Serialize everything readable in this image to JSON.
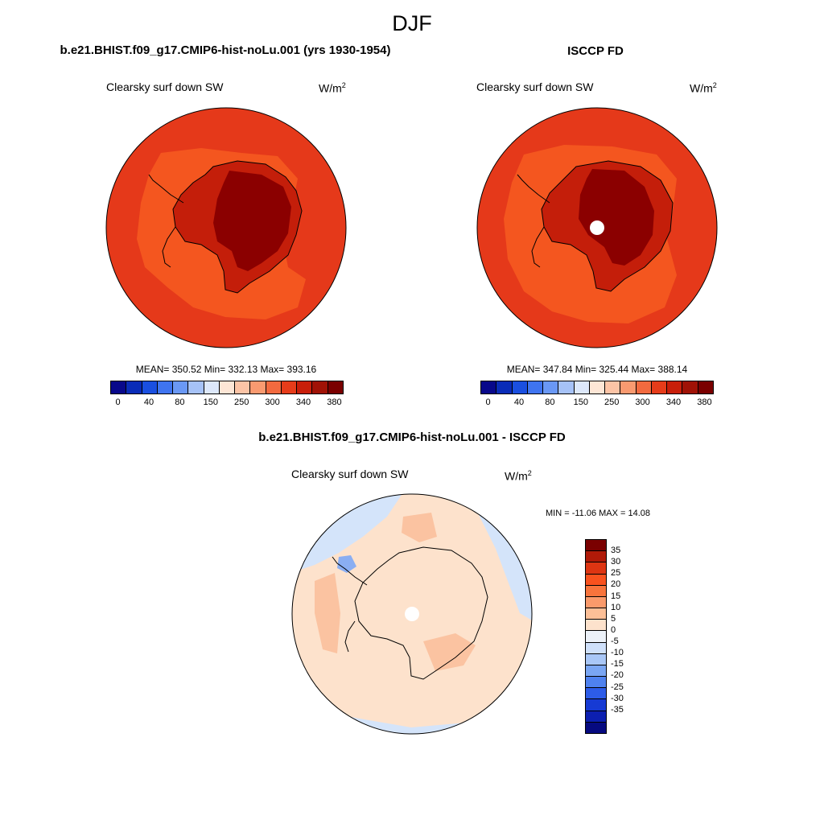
{
  "title": "DJF",
  "panels": [
    {
      "title": "b.e21.BHIST.f09_g17.CMIP6-hist-noLu.001 (yrs 1930-1954)",
      "variable": "Clearsky surf down SW",
      "units_base": "W/m",
      "units_exp": "2",
      "stats": "MEAN= 350.52  Min= 332.13  Max= 393.16"
    },
    {
      "title": "ISCCP FD",
      "variable": "Clearsky surf down SW",
      "units_base": "W/m",
      "units_exp": "2",
      "stats": "MEAN= 347.84  Min= 325.44  Max= 388.14"
    },
    {
      "title": "b.e21.BHIST.f09_g17.CMIP6-hist-noLu.001 - ISCCP FD",
      "variable": "Clearsky surf down SW",
      "units_base": "W/m",
      "units_exp": "2",
      "stats": "MIN = -11.06 MAX =  14.08"
    }
  ],
  "colorbar_abs": {
    "colors": [
      "#08088a",
      "#0a2cb8",
      "#1a4fe0",
      "#3f74f0",
      "#6a98f5",
      "#a6c2f7",
      "#dde8fb",
      "#fde6d6",
      "#fcc4a6",
      "#f99a70",
      "#f26a3f",
      "#e63c1a",
      "#c81e0a",
      "#a01206",
      "#7a0000"
    ],
    "tick_labels": [
      "0",
      "40",
      "80",
      "150",
      "250",
      "300",
      "340",
      "380"
    ]
  },
  "colorbar_diff": {
    "colors": [
      "#7a0000",
      "#b01a08",
      "#de3512",
      "#f9521e",
      "#f8743c",
      "#fa9a6b",
      "#fcbf97",
      "#fde2cc",
      "#ecf1f8",
      "#cfe0fa",
      "#a9c7f7",
      "#7aa6f3",
      "#4f82ef",
      "#2d5ce8",
      "#163ad4",
      "#0c1fb0",
      "#060a80"
    ],
    "tick_labels": [
      "35",
      "30",
      "25",
      "20",
      "15",
      "10",
      "5",
      "0",
      "-5",
      "-10",
      "-15",
      "-20",
      "-25",
      "-30",
      "-35"
    ]
  },
  "map_colors": {
    "ocean_abs": "#e5391a",
    "ocean_light": "#f4561f",
    "land_mid": "#c41e0a",
    "land_high": "#8b0000",
    "diff_bg": "#fde2cc",
    "diff_pos": "#fbc3a1",
    "diff_neg": "#d4e4fa",
    "diff_neg_strong": "#8aaef2"
  }
}
